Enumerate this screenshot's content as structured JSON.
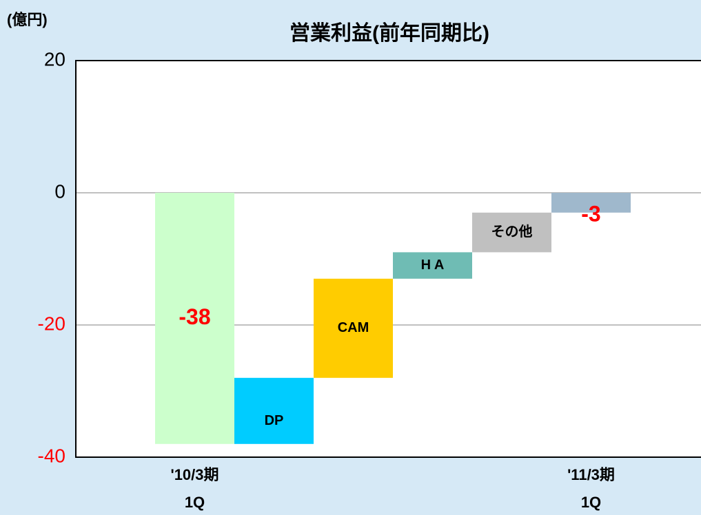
{
  "chart_data": {
    "type": "waterfall",
    "title": "営業利益(前年同期比)",
    "unit_label": "(億円)",
    "categories": [
      "'10/3期\n1Q",
      null,
      null,
      null,
      null,
      "'11/3期\n1Q"
    ],
    "segment_names": [
      null,
      "DP",
      "CAM",
      "H A",
      "その他",
      null
    ],
    "kinds": [
      "total",
      "delta",
      "delta",
      "delta",
      "delta",
      "total"
    ],
    "values": [
      -38,
      10,
      15,
      4,
      6,
      -3
    ],
    "colors": [
      "#ccffcc",
      "#00ccff",
      "#ffcc00",
      "#6fbcb4",
      "#c0c0c0",
      "#9fb8cc"
    ],
    "total_label_color": "#ff0000",
    "ylim": [
      -40,
      20
    ],
    "yticks": [
      -40,
      -20,
      0,
      20
    ],
    "negative_tick_color": "#ff0000",
    "grid": true
  }
}
